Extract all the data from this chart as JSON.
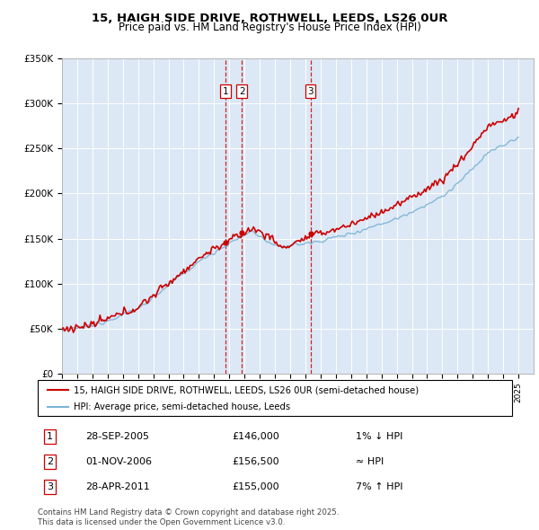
{
  "title": "15, HAIGH SIDE DRIVE, ROTHWELL, LEEDS, LS26 0UR",
  "subtitle": "Price paid vs. HM Land Registry's House Price Index (HPI)",
  "legend_line1": "15, HAIGH SIDE DRIVE, ROTHWELL, LEEDS, LS26 0UR (semi-detached house)",
  "legend_line2": "HPI: Average price, semi-detached house, Leeds",
  "footer1": "Contains HM Land Registry data © Crown copyright and database right 2025.",
  "footer2": "This data is licensed under the Open Government Licence v3.0.",
  "transactions": [
    {
      "id": 1,
      "date": "28-SEP-2005",
      "price": 146000,
      "hpi": "1% ↓ HPI",
      "year": 2005.75
    },
    {
      "id": 2,
      "date": "01-NOV-2006",
      "price": 156500,
      "hpi": "≈ HPI",
      "year": 2006.83
    },
    {
      "id": 3,
      "date": "28-APR-2011",
      "price": 155000,
      "hpi": "7% ↑ HPI",
      "year": 2011.33
    }
  ],
  "hpi_color": "#7ab3d4",
  "price_color": "#cc0000",
  "vline_color": "#cc0000",
  "bg_color": "#dce8f5",
  "ylim": [
    0,
    350000
  ],
  "yticks": [
    0,
    50000,
    100000,
    150000,
    200000,
    250000,
    300000,
    350000
  ],
  "ytick_labels": [
    "£0",
    "£50K",
    "£100K",
    "£150K",
    "£200K",
    "£250K",
    "£300K",
    "£350K"
  ],
  "xstart": 1995,
  "xend": 2026
}
